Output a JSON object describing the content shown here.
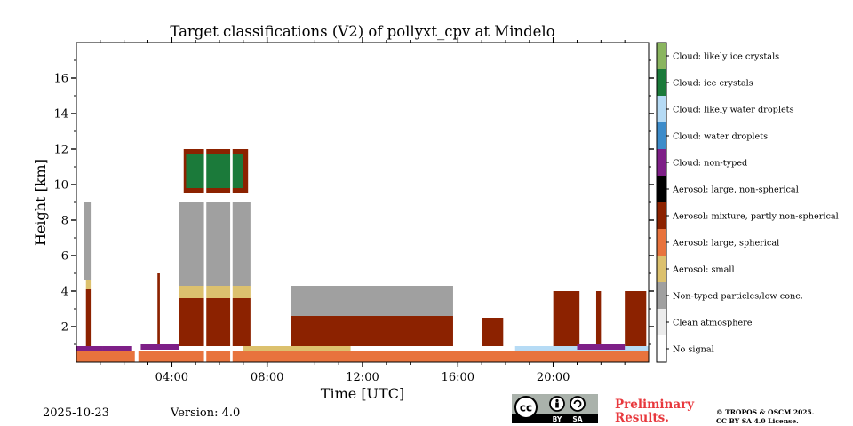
{
  "chart_data": {
    "type": "heatmap",
    "title": "Target classifications (V2) of pollyxt_cpv at Mindelo",
    "xlabel": "Time [UTC]",
    "ylabel": "Height [km]",
    "xlim_hours": [
      0,
      24
    ],
    "ylim_km": [
      0,
      18
    ],
    "x_ticks": [
      {
        "value": 4,
        "label": "04:00"
      },
      {
        "value": 8,
        "label": "08:00"
      },
      {
        "value": 12,
        "label": "12:00"
      },
      {
        "value": 16,
        "label": "16:00"
      },
      {
        "value": 20,
        "label": "20:00"
      }
    ],
    "y_ticks": [
      {
        "value": 2,
        "label": "2"
      },
      {
        "value": 4,
        "label": "4"
      },
      {
        "value": 6,
        "label": "6"
      },
      {
        "value": 8,
        "label": "8"
      },
      {
        "value": 10,
        "label": "10"
      },
      {
        "value": 12,
        "label": "12"
      },
      {
        "value": 14,
        "label": "14"
      },
      {
        "value": 16,
        "label": "16"
      }
    ],
    "classes": [
      {
        "label": "Cloud: likely ice crystals",
        "color": "#8ab55f"
      },
      {
        "label": "Cloud: ice crystals",
        "color": "#1b7a3a"
      },
      {
        "label": "Cloud: likely water droplets",
        "color": "#b6dbf5"
      },
      {
        "label": "Cloud: water droplets",
        "color": "#3d8cca"
      },
      {
        "label": "Cloud: non-typed",
        "color": "#7e1f87"
      },
      {
        "label": "Aerosol: large, non-spherical",
        "color": "#000000"
      },
      {
        "label": "Aerosol: mixture, partly non-spherical",
        "color": "#8c2200"
      },
      {
        "label": "Aerosol: large, spherical",
        "color": "#e8733d"
      },
      {
        "label": "Aerosol: small",
        "color": "#dcc16e"
      },
      {
        "label": "Non-typed particles/low conc.",
        "color": "#a0a0a0"
      },
      {
        "label": "Clean atmosphere",
        "color": "#ececec"
      },
      {
        "label": "No signal",
        "color": "#ffffff"
      }
    ],
    "regions": [
      {
        "cls": "Aerosol: large, spherical",
        "t0": 0.0,
        "t1": 24.0,
        "z0": 0.0,
        "z1": 0.6
      },
      {
        "cls": "Cloud: non-typed",
        "t0": 0.0,
        "t1": 1.1,
        "z0": 0.6,
        "z1": 0.9
      },
      {
        "cls": "Cloud: non-typed",
        "t0": 1.1,
        "t1": 2.3,
        "z0": 0.6,
        "z1": 0.9
      },
      {
        "cls": "Cloud: non-typed",
        "t0": 2.7,
        "t1": 4.3,
        "z0": 0.7,
        "z1": 1.0
      },
      {
        "cls": "Aerosol: mixture, partly non-spherical",
        "t0": 0.4,
        "t1": 0.6,
        "z0": 0.9,
        "z1": 4.1
      },
      {
        "cls": "Aerosol: small",
        "t0": 0.4,
        "t1": 0.6,
        "z0": 4.1,
        "z1": 4.6
      },
      {
        "cls": "Non-typed particles/low conc.",
        "t0": 0.3,
        "t1": 0.6,
        "z0": 4.6,
        "z1": 9.0
      },
      {
        "cls": "Aerosol: mixture, partly non-spherical",
        "t0": 3.4,
        "t1": 3.5,
        "z0": 1.0,
        "z1": 5.0
      },
      {
        "cls": "Aerosol: mixture, partly non-spherical",
        "t0": 4.3,
        "t1": 7.3,
        "z0": 0.9,
        "z1": 3.6
      },
      {
        "cls": "Aerosol: small",
        "t0": 4.3,
        "t1": 7.3,
        "z0": 3.6,
        "z1": 4.3
      },
      {
        "cls": "Non-typed particles/low conc.",
        "t0": 4.3,
        "t1": 7.3,
        "z0": 4.3,
        "z1": 9.0
      },
      {
        "cls": "Aerosol: mixture, partly non-spherical",
        "t0": 4.5,
        "t1": 7.2,
        "z0": 9.5,
        "z1": 12.0
      },
      {
        "cls": "Cloud: ice crystals",
        "t0": 4.6,
        "t1": 7.0,
        "z0": 9.8,
        "z1": 11.7
      },
      {
        "cls": "Aerosol: mixture, partly non-spherical",
        "t0": 9.0,
        "t1": 15.8,
        "z0": 0.9,
        "z1": 2.6
      },
      {
        "cls": "Non-typed particles/low conc.",
        "t0": 9.0,
        "t1": 15.8,
        "z0": 2.6,
        "z1": 4.3
      },
      {
        "cls": "Aerosol: small",
        "t0": 7.0,
        "t1": 11.5,
        "z0": 0.6,
        "z1": 0.9
      },
      {
        "cls": "Aerosol: mixture, partly non-spherical",
        "t0": 17.0,
        "t1": 17.9,
        "z0": 0.9,
        "z1": 2.5
      },
      {
        "cls": "Aerosol: mixture, partly non-spherical",
        "t0": 20.0,
        "t1": 21.1,
        "z0": 0.9,
        "z1": 4.0
      },
      {
        "cls": "Aerosol: mixture, partly non-spherical",
        "t0": 21.8,
        "t1": 22.0,
        "z0": 0.9,
        "z1": 4.0
      },
      {
        "cls": "Aerosol: mixture, partly non-spherical",
        "t0": 23.0,
        "t1": 23.9,
        "z0": 0.9,
        "z1": 4.0
      },
      {
        "cls": "Cloud: likely water droplets",
        "t0": 18.4,
        "t1": 24.0,
        "z0": 0.6,
        "z1": 0.9
      },
      {
        "cls": "Cloud: non-typed",
        "t0": 21.0,
        "t1": 23.0,
        "z0": 0.7,
        "z1": 1.0
      }
    ],
    "gaps_hours": [
      [
        2.45,
        2.6
      ],
      [
        5.35,
        5.45
      ],
      [
        6.45,
        6.55
      ]
    ]
  },
  "footer": {
    "date": "2025-10-23",
    "version": "Version: 4.0",
    "preliminary_line1": "Preliminary",
    "preliminary_line2": "Results.",
    "license_line1": "© TROPOS & OSCM 2025.",
    "license_line2": "CC BY SA 4.0 License.",
    "cc_text": "cc",
    "by_text": "BY",
    "sa_text": "SA"
  }
}
